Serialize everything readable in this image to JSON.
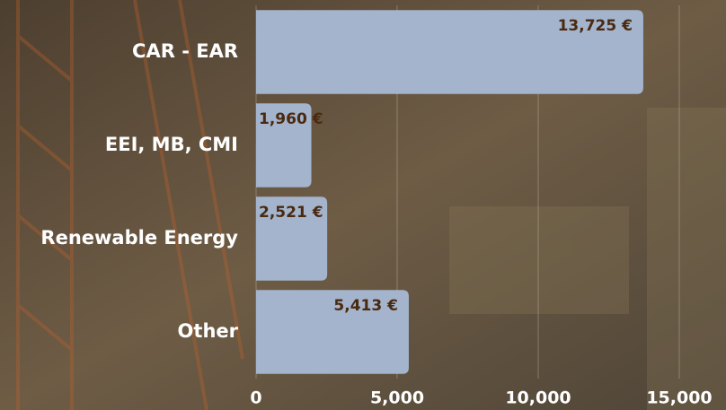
{
  "chart_data": {
    "type": "bar",
    "orientation": "horizontal",
    "categories": [
      "CAR - EAR",
      "EEI, MB, CMI",
      "Renewable Energy",
      "Other"
    ],
    "values": [
      13725,
      1960,
      2521,
      5413
    ],
    "value_labels": [
      "13,725 €",
      "1,960 €",
      "2,521 €",
      "5,413 €"
    ],
    "color": "#a3b4cc",
    "xlim": [
      0,
      15000
    ],
    "xticks": [
      0,
      {
        "value": 5000,
        "label": "5,000"
      },
      {
        "value": 10000,
        "label": "10,000"
      },
      {
        "value": 15000,
        "label": "15,000"
      }
    ],
    "grid": true
  }
}
